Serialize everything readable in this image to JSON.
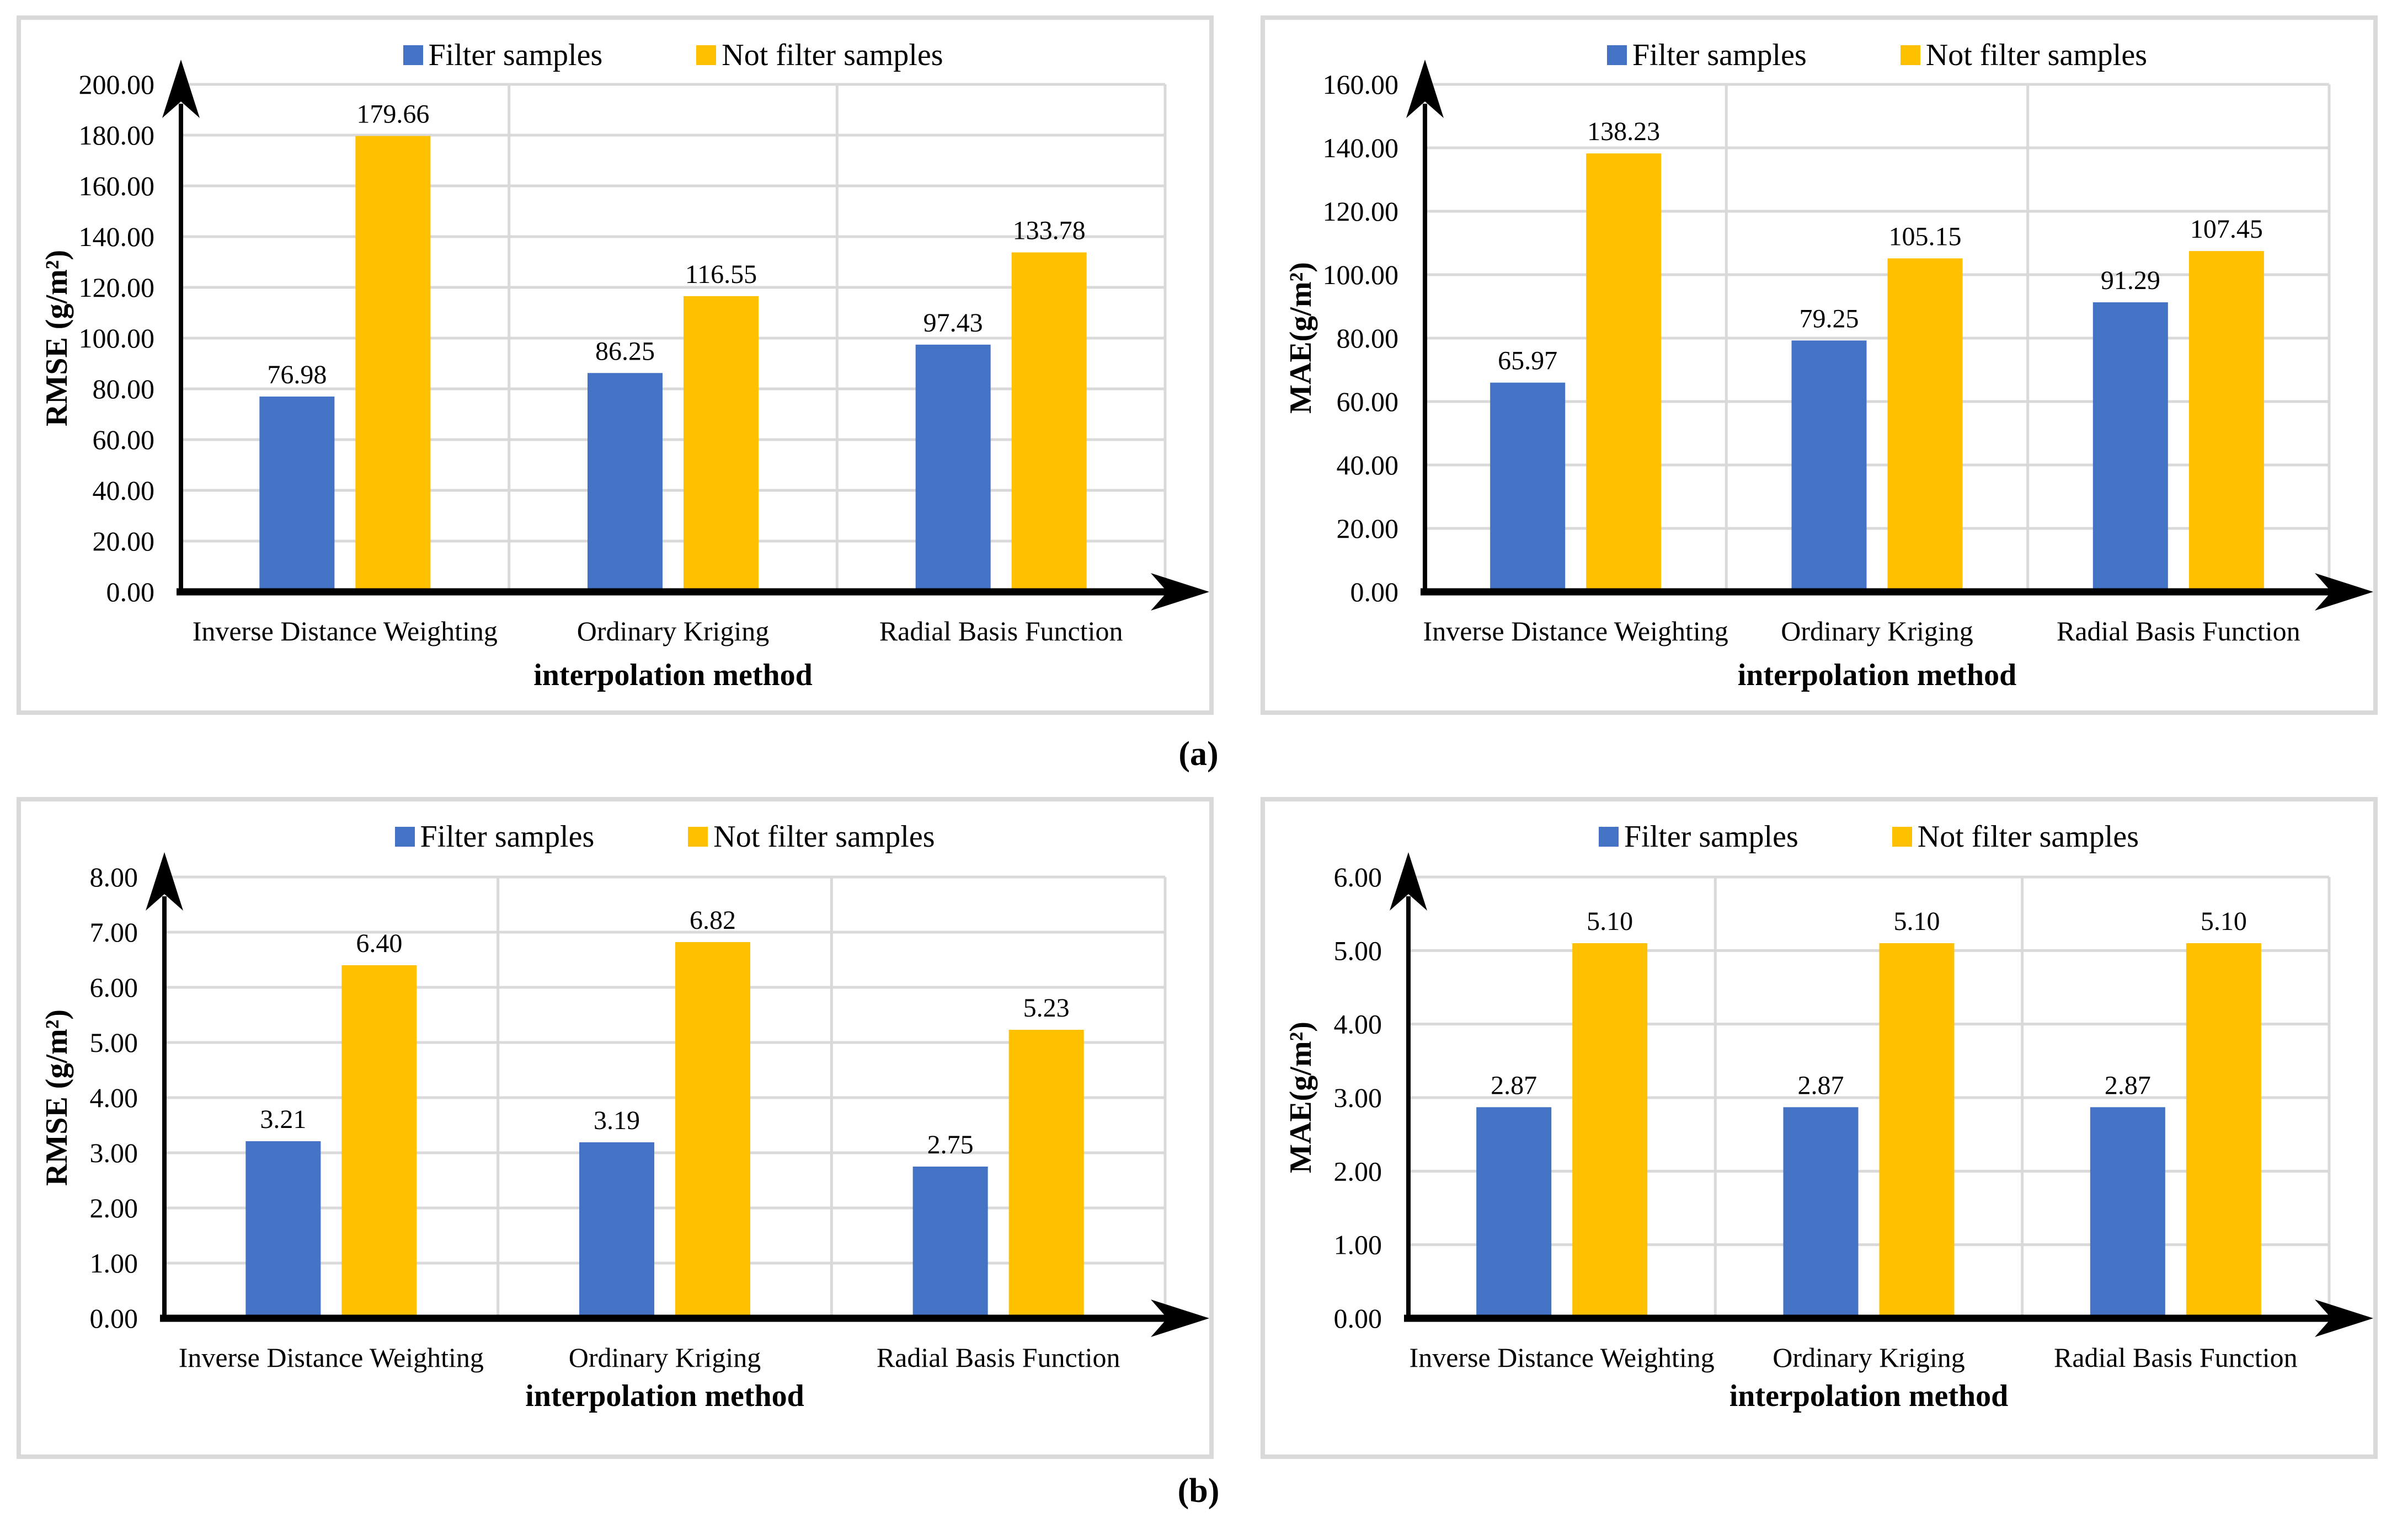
{
  "figure": {
    "captions": {
      "a": "(a)",
      "b": "(b)"
    },
    "legend": {
      "filter": "Filter samples",
      "not_filter": "Not filter samples"
    },
    "colors": {
      "filter_series": "#4472C4",
      "not_filter_series": "#FFC000",
      "gridline": "#D9D9D9",
      "panel_border": "#D9D9D9",
      "axis": "#000000",
      "text": "#000000",
      "background": "#FFFFFF"
    }
  },
  "chart_data": [
    {
      "id": "panel-a-rmse",
      "type": "bar",
      "title": "",
      "xlabel": "interpolation method",
      "ylabel": "RMSE (g/m²)",
      "categories": [
        "Inverse Distance Weighting",
        "Ordinary Kriging",
        "Radial Basis Function"
      ],
      "series": [
        {
          "name": "Filter samples",
          "color": "#4472C4",
          "values": [
            76.98,
            86.25,
            97.43
          ]
        },
        {
          "name": "Not filter samples",
          "color": "#FFC000",
          "values": [
            179.66,
            116.55,
            133.78
          ]
        }
      ],
      "ylim": [
        0,
        200
      ],
      "ytick_step": 20,
      "tick_decimals": 2,
      "value_label_decimals": 2,
      "grid": true,
      "legend_position": "top"
    },
    {
      "id": "panel-a-mae",
      "type": "bar",
      "title": "",
      "xlabel": "interpolation method",
      "ylabel": "MAE(g/m²)",
      "categories": [
        "Inverse Distance Weighting",
        "Ordinary Kriging",
        "Radial Basis Function"
      ],
      "series": [
        {
          "name": "Filter samples",
          "color": "#4472C4",
          "values": [
            65.97,
            79.25,
            91.29
          ]
        },
        {
          "name": "Not filter samples",
          "color": "#FFC000",
          "values": [
            138.23,
            105.15,
            107.45
          ]
        }
      ],
      "ylim": [
        0,
        160
      ],
      "ytick_step": 20,
      "tick_decimals": 2,
      "value_label_decimals": 2,
      "grid": true,
      "legend_position": "top"
    },
    {
      "id": "panel-b-rmse",
      "type": "bar",
      "title": "",
      "xlabel": "interpolation method",
      "ylabel": "RMSE (g/m²)",
      "categories": [
        "Inverse Distance Weighting",
        "Ordinary Kriging",
        "Radial Basis Function"
      ],
      "series": [
        {
          "name": "Filter samples",
          "color": "#4472C4",
          "values": [
            3.21,
            3.19,
            2.75
          ]
        },
        {
          "name": "Not filter samples",
          "color": "#FFC000",
          "values": [
            6.4,
            6.82,
            5.23
          ]
        }
      ],
      "ylim": [
        0,
        8
      ],
      "ytick_step": 1,
      "tick_decimals": 2,
      "value_label_decimals": 2,
      "grid": true,
      "legend_position": "top"
    },
    {
      "id": "panel-b-mae",
      "type": "bar",
      "title": "",
      "xlabel": "interpolation method",
      "ylabel": "MAE(g/m²)",
      "categories": [
        "Inverse Distance Weighting",
        "Ordinary Kriging",
        "Radial Basis Function"
      ],
      "series": [
        {
          "name": "Filter samples",
          "color": "#4472C4",
          "values": [
            2.87,
            2.87,
            2.87
          ]
        },
        {
          "name": "Not filter samples",
          "color": "#FFC000",
          "values": [
            5.1,
            5.1,
            5.1
          ]
        }
      ],
      "ylim": [
        0,
        6
      ],
      "ytick_step": 1,
      "tick_decimals": 2,
      "value_label_decimals": 2,
      "grid": true,
      "legend_position": "top"
    }
  ]
}
